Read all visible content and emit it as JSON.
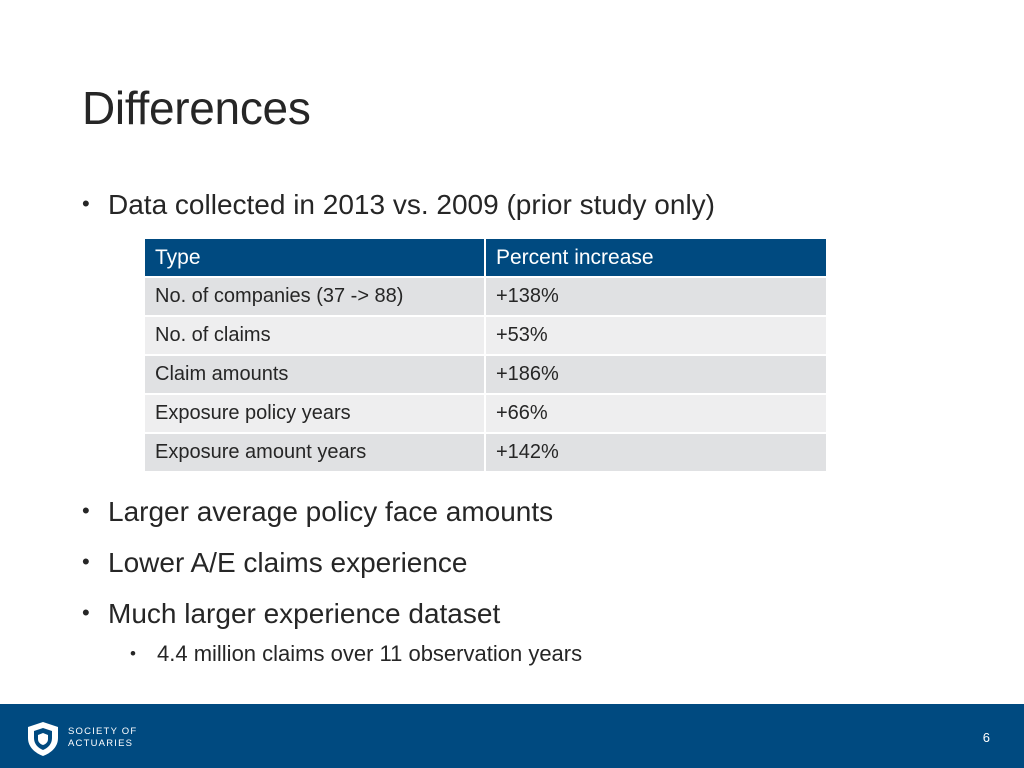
{
  "slide": {
    "title": "Differences",
    "intro_bullet": "Data collected in 2013 vs. 2009 (prior study only)",
    "table": {
      "headers": [
        "Type",
        "Percent increase"
      ],
      "rows": [
        [
          "No. of companies (37 -> 88)",
          "+138%"
        ],
        [
          "No. of claims",
          "+53%"
        ],
        [
          "Claim amounts",
          "+186%"
        ],
        [
          "Exposure policy years",
          "+66%"
        ],
        [
          "Exposure amount years",
          "+142%"
        ]
      ]
    },
    "bullets": [
      "Larger average policy face amounts",
      "Lower A/E claims experience",
      "Much larger experience dataset"
    ],
    "sub_bullets": [
      "4.4 million claims over 11 observation years"
    ]
  },
  "footer": {
    "logo_line1": "SOCIETY OF",
    "logo_line2": "ACTUARIES",
    "page_number": "6"
  },
  "colors": {
    "brand_blue": "#004a80",
    "row_dark": "#e0e1e3",
    "row_light": "#eeeeef"
  },
  "icons": [
    "bullet-dot-icon",
    "soa-shield-logo-icon"
  ]
}
